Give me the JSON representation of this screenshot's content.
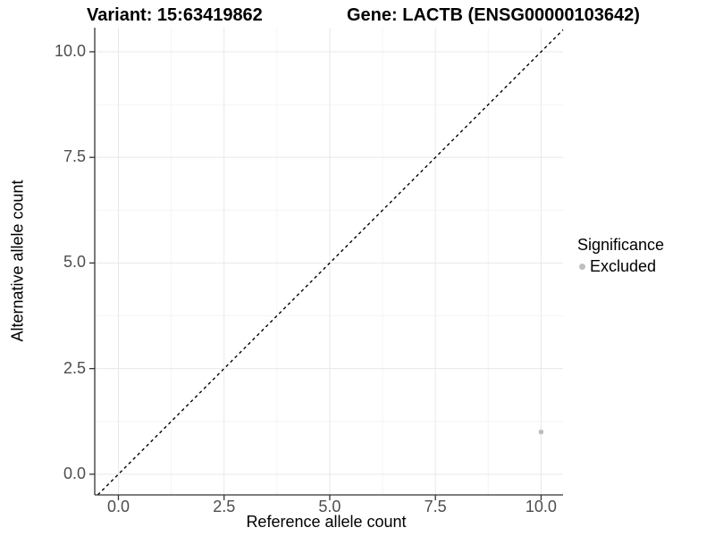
{
  "header": {
    "variant_title": "Variant: 15:63419862",
    "gene_title": "Gene: LACTB (ENSG00000103642)"
  },
  "axes": {
    "x": {
      "label": "Reference allele count",
      "tick_labels": [
        "0.0",
        "2.5",
        "5.0",
        "7.5",
        "10.0"
      ]
    },
    "y": {
      "label": "Alternative allele count",
      "tick_labels": [
        "0.0",
        "2.5",
        "5.0",
        "7.5",
        "10.0"
      ]
    }
  },
  "legend": {
    "title": "Significance",
    "items": [
      {
        "label": "Excluded",
        "color": "#bebebe"
      }
    ]
  },
  "chart_data": {
    "type": "scatter",
    "title": "Variant: 15:63419862 / Gene: LACTB (ENSG00000103642)",
    "xlabel": "Reference allele count",
    "ylabel": "Alternative allele count",
    "xlim": [
      -0.56,
      10.52
    ],
    "ylim": [
      -0.49,
      10.57
    ],
    "x_ticks": [
      0,
      2.5,
      5,
      7.5,
      10
    ],
    "y_ticks": [
      0,
      2.5,
      5,
      7.5,
      10
    ],
    "grid": "major+minor",
    "legend_position": "right",
    "series": [
      {
        "name": "Excluded",
        "color": "#bebebe",
        "points": [
          {
            "x": 10,
            "y": 1
          }
        ]
      }
    ],
    "reference_line": {
      "type": "identity y=x",
      "style": "dashed",
      "color": "#000000"
    }
  },
  "colors": {
    "background": "#ffffff",
    "grid_major": "#e8e8e8",
    "grid_minor": "#f4f4f4",
    "axis_line": "#333333",
    "tick_label": "#4d4d4d",
    "point": "#bebebe",
    "reference_line": "#000000"
  }
}
